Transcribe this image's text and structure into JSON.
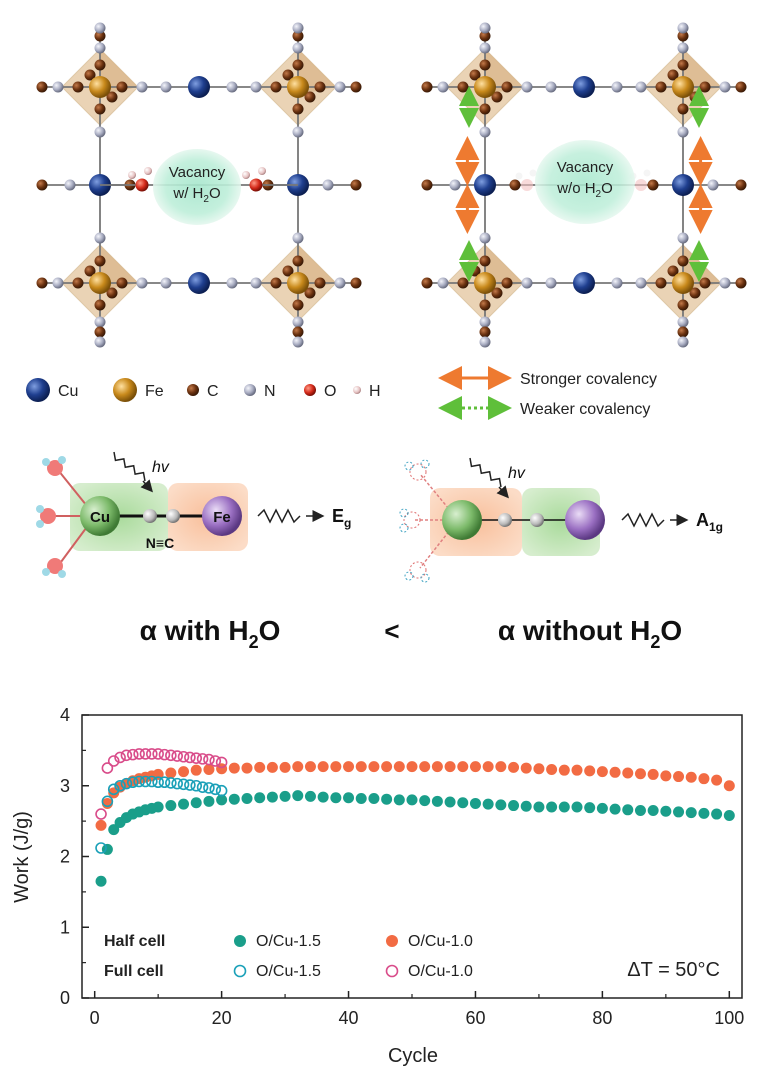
{
  "structures": {
    "left_label_line1": "Vacancy",
    "left_label_line2": "w/ H",
    "left_label_sub": "2",
    "left_label_tail": "O",
    "right_label_line1": "Vacancy",
    "right_label_line2": "w/o H",
    "right_label_sub": "2",
    "right_label_tail": "O"
  },
  "legend_atoms": [
    {
      "label": "Cu",
      "color": "#1f3f8f"
    },
    {
      "label": "Fe",
      "color": "#c98a1c"
    },
    {
      "label": "C",
      "color": "#6b3210"
    },
    {
      "label": "N",
      "color": "#a9adc2"
    },
    {
      "label": "O",
      "color": "#d42a1a"
    },
    {
      "label": "H",
      "color": "#e6c2c2"
    }
  ],
  "legend_bonds": {
    "stronger": "Stronger covalency",
    "weaker": "Weaker covalency",
    "stronger_color": "#ee7a30",
    "weaker_color": "#5fbf3a"
  },
  "phonon": {
    "left": {
      "cu": "Cu",
      "fe": "Fe",
      "nc": "N≡C",
      "hv": "hv",
      "mode": "E",
      "mode_sub": "g"
    },
    "right": {
      "hv": "hv",
      "mode": "A",
      "mode_sub": "1g"
    }
  },
  "comparison": {
    "left": "α with H",
    "left_sub": "2",
    "left_tail": "O",
    "op": "<",
    "right": "α without H",
    "right_sub": "2",
    "right_tail": "O"
  },
  "chart_data": {
    "type": "scatter",
    "xlabel": "Cycle",
    "ylabel": "Work (J/g)",
    "xlim": [
      -2,
      102
    ],
    "ylim": [
      0,
      4
    ],
    "xticks": [
      0,
      20,
      40,
      60,
      80,
      100
    ],
    "yticks": [
      0,
      1,
      2,
      3,
      4
    ],
    "annotation": "ΔT = 50°C",
    "legend_rows": [
      "Half cell",
      "Full cell"
    ],
    "series": [
      {
        "name": "O/Cu-1.5",
        "cell": "Half cell",
        "color": "#1a9e8a",
        "filled": true,
        "x": [
          1,
          2,
          3,
          4,
          5,
          6,
          7,
          8,
          9,
          10,
          12,
          14,
          16,
          18,
          20,
          22,
          24,
          26,
          28,
          30,
          32,
          34,
          36,
          38,
          40,
          42,
          44,
          46,
          48,
          50,
          52,
          54,
          56,
          58,
          60,
          62,
          64,
          66,
          68,
          70,
          72,
          74,
          76,
          78,
          80,
          82,
          84,
          86,
          88,
          90,
          92,
          94,
          96,
          98,
          100
        ],
        "y": [
          1.65,
          2.1,
          2.38,
          2.48,
          2.55,
          2.6,
          2.63,
          2.66,
          2.68,
          2.7,
          2.72,
          2.74,
          2.76,
          2.78,
          2.8,
          2.81,
          2.82,
          2.83,
          2.84,
          2.85,
          2.86,
          2.85,
          2.84,
          2.83,
          2.83,
          2.82,
          2.82,
          2.81,
          2.8,
          2.8,
          2.79,
          2.78,
          2.77,
          2.76,
          2.75,
          2.74,
          2.73,
          2.72,
          2.71,
          2.7,
          2.7,
          2.7,
          2.7,
          2.69,
          2.68,
          2.67,
          2.66,
          2.65,
          2.65,
          2.64,
          2.63,
          2.62,
          2.61,
          2.6,
          2.58
        ]
      },
      {
        "name": "O/Cu-1.0",
        "cell": "Half cell",
        "color": "#f26b43",
        "filled": true,
        "x": [
          1,
          2,
          3,
          4,
          5,
          6,
          7,
          8,
          9,
          10,
          12,
          14,
          16,
          18,
          20,
          22,
          24,
          26,
          28,
          30,
          32,
          34,
          36,
          38,
          40,
          42,
          44,
          46,
          48,
          50,
          52,
          54,
          56,
          58,
          60,
          62,
          64,
          66,
          68,
          70,
          72,
          74,
          76,
          78,
          80,
          82,
          84,
          86,
          88,
          90,
          92,
          94,
          96,
          98,
          100
        ],
        "y": [
          2.44,
          2.75,
          2.9,
          2.98,
          3.03,
          3.07,
          3.1,
          3.12,
          3.14,
          3.16,
          3.18,
          3.2,
          3.22,
          3.23,
          3.24,
          3.25,
          3.25,
          3.26,
          3.26,
          3.26,
          3.27,
          3.27,
          3.27,
          3.27,
          3.27,
          3.27,
          3.27,
          3.27,
          3.27,
          3.27,
          3.27,
          3.27,
          3.27,
          3.27,
          3.27,
          3.27,
          3.27,
          3.26,
          3.25,
          3.24,
          3.23,
          3.22,
          3.22,
          3.21,
          3.2,
          3.19,
          3.18,
          3.17,
          3.16,
          3.14,
          3.13,
          3.12,
          3.1,
          3.08,
          3.0
        ]
      },
      {
        "name": "O/Cu-1.5",
        "cell": "Full cell",
        "color": "#1aa0b8",
        "filled": false,
        "x": [
          1,
          2,
          3,
          4,
          5,
          6,
          7,
          8,
          9,
          10,
          11,
          12,
          13,
          14,
          15,
          16,
          17,
          18,
          19,
          20
        ],
        "y": [
          2.12,
          2.78,
          2.95,
          3.0,
          3.03,
          3.05,
          3.06,
          3.06,
          3.06,
          3.05,
          3.05,
          3.04,
          3.03,
          3.02,
          3.01,
          3.0,
          2.98,
          2.97,
          2.95,
          2.93
        ]
      },
      {
        "name": "O/Cu-1.0",
        "cell": "Full cell",
        "color": "#d94c8a",
        "filled": false,
        "x": [
          1,
          2,
          3,
          4,
          5,
          6,
          7,
          8,
          9,
          10,
          11,
          12,
          13,
          14,
          15,
          16,
          17,
          18,
          19,
          20
        ],
        "y": [
          2.6,
          3.25,
          3.35,
          3.4,
          3.43,
          3.44,
          3.45,
          3.45,
          3.45,
          3.45,
          3.44,
          3.43,
          3.42,
          3.41,
          3.4,
          3.39,
          3.38,
          3.37,
          3.35,
          3.33
        ]
      }
    ]
  }
}
